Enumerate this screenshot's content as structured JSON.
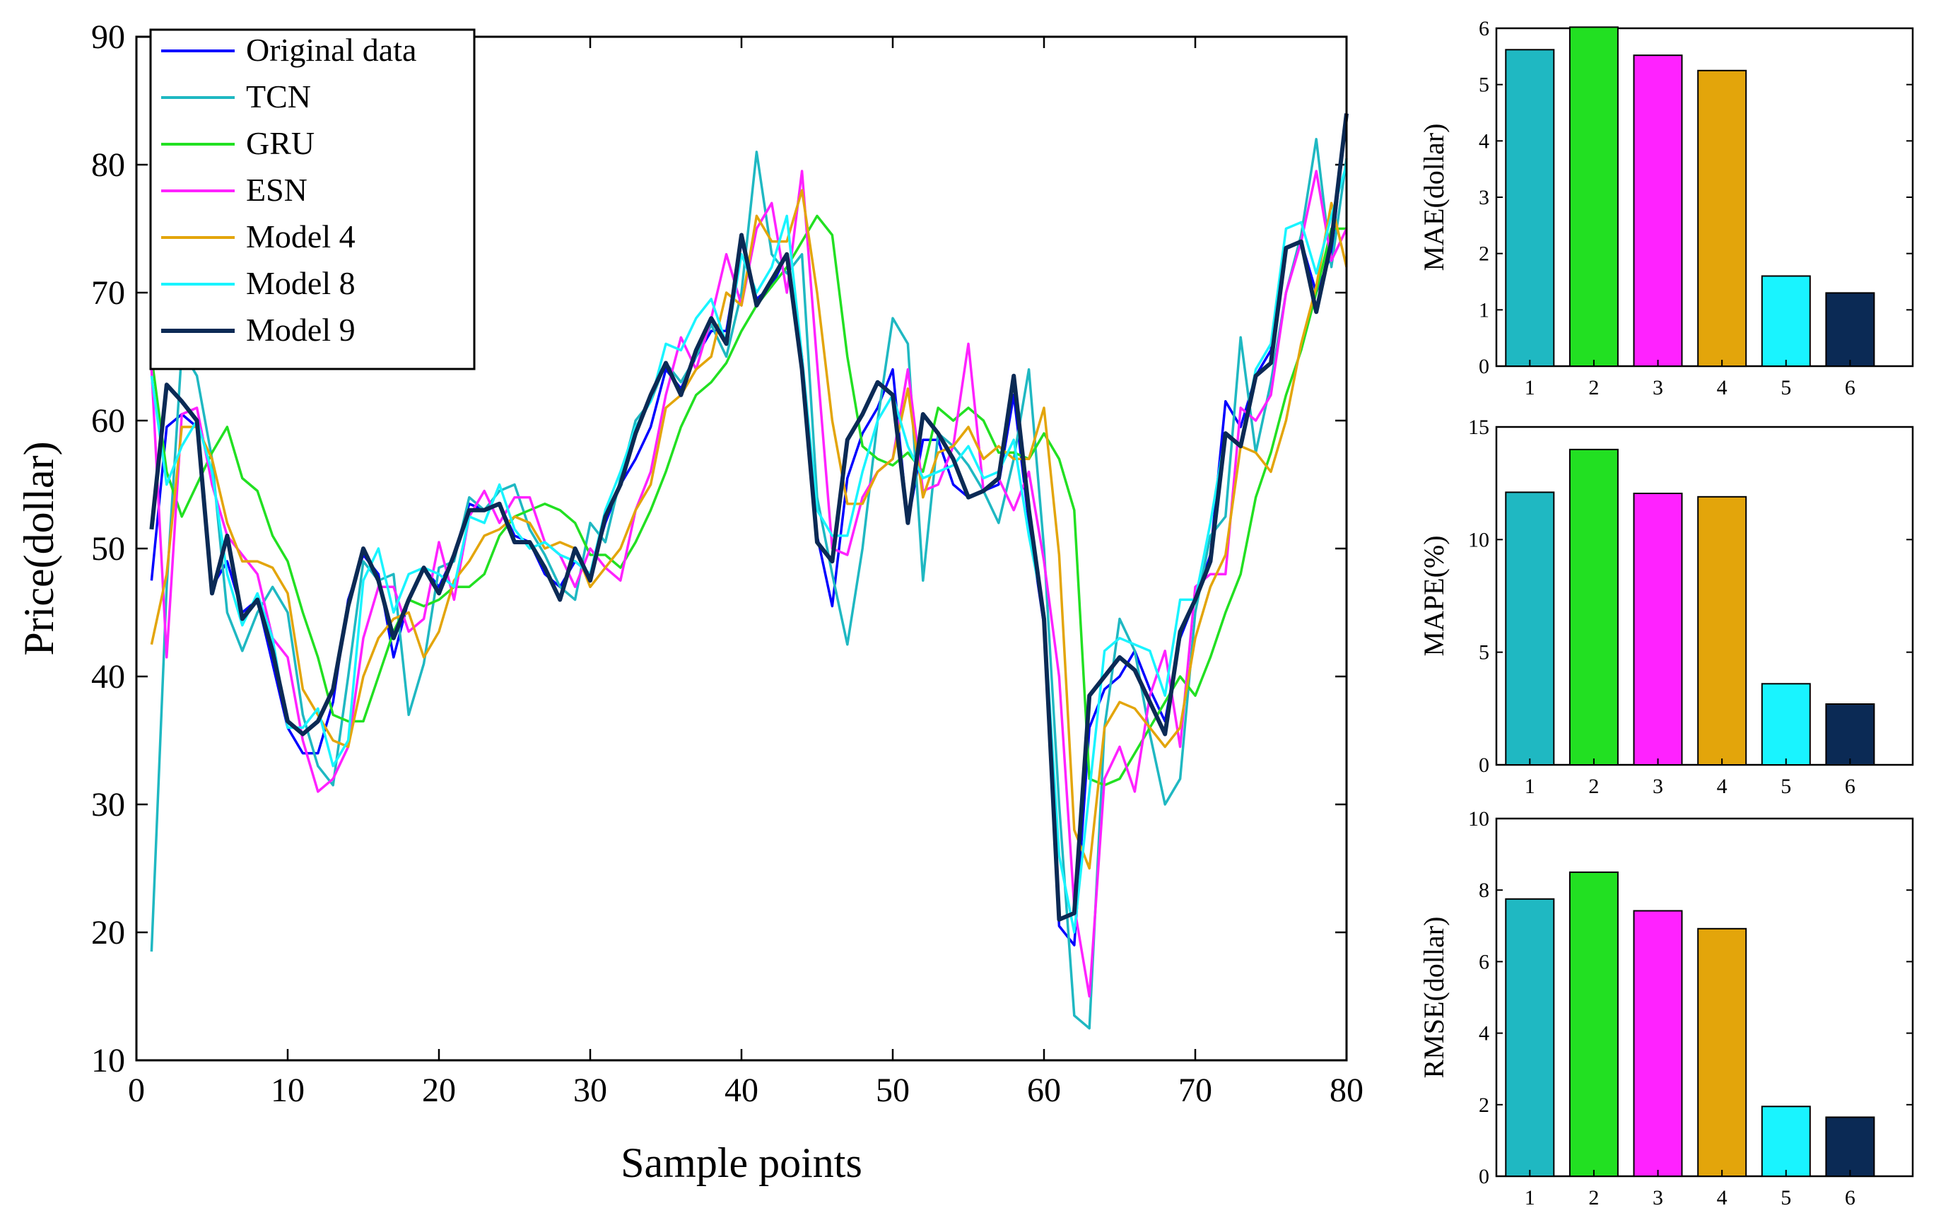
{
  "colors": {
    "original": "#0000ff",
    "tcn": "#1fb8c2",
    "gru": "#22e022",
    "esn": "#ff22ff",
    "model4": "#e3a50b",
    "model8": "#19f4ff",
    "model9": "#0b2a55"
  },
  "chart_data": [
    {
      "type": "line",
      "xlabel": "Sample points",
      "ylabel": "Price(dollar)",
      "xlim": [
        0,
        80
      ],
      "ylim": [
        10,
        90
      ],
      "xticks": [
        "0",
        "10",
        "20",
        "30",
        "40",
        "50",
        "60",
        "70",
        "80"
      ],
      "yticks": [
        "10",
        "20",
        "30",
        "40",
        "50",
        "60",
        "70",
        "80",
        "90"
      ],
      "legend": [
        "Original data",
        "TCN",
        "GRU",
        "ESN",
        "Model 4",
        "Model 8",
        "Model 9"
      ],
      "x": [
        1,
        2,
        3,
        4,
        5,
        6,
        7,
        8,
        9,
        10,
        11,
        12,
        13,
        14,
        15,
        16,
        17,
        18,
        19,
        20,
        21,
        22,
        23,
        24,
        25,
        26,
        27,
        28,
        29,
        30,
        31,
        32,
        33,
        34,
        35,
        36,
        37,
        38,
        39,
        40,
        41,
        42,
        43,
        44,
        45,
        46,
        47,
        48,
        49,
        50,
        51,
        52,
        53,
        54,
        55,
        56,
        57,
        58,
        59,
        60,
        61,
        62,
        63,
        64,
        65,
        66,
        67,
        68,
        69,
        70,
        71,
        72,
        73,
        74,
        75,
        76,
        77,
        78,
        79,
        80
      ],
      "series": [
        {
          "name": "Original data",
          "color_key": "original",
          "values": [
            47.5,
            59.5,
            60.5,
            59.5,
            47,
            49,
            45,
            46,
            41,
            36,
            34,
            34,
            38,
            46,
            49.5,
            48,
            41.5,
            46,
            48.5,
            47,
            49.5,
            53.5,
            53,
            53.5,
            51,
            50.5,
            48,
            47,
            49,
            48,
            52,
            55,
            57,
            59.5,
            64,
            62.5,
            65,
            67,
            67,
            74,
            69.5,
            70.5,
            73,
            65,
            51,
            45.5,
            55.5,
            59,
            61,
            64,
            52,
            58.5,
            58.5,
            55,
            54,
            54.5,
            55,
            62,
            52,
            44,
            20.5,
            19,
            36,
            39,
            40,
            42,
            39,
            36.5,
            43,
            46,
            49.5,
            61.5,
            59.5,
            63.5,
            65.5,
            73.5,
            74,
            70,
            73,
            84
          ]
        },
        {
          "name": "TCN",
          "color_key": "tcn",
          "values": [
            18.5,
            47,
            65.5,
            63.5,
            57,
            45,
            42,
            45,
            47,
            45,
            37,
            33,
            31.5,
            40,
            49,
            47.5,
            48,
            37,
            41,
            48.5,
            49,
            54,
            53,
            54.5,
            55,
            51.5,
            49.5,
            47,
            46,
            52,
            50.5,
            55.5,
            60,
            61.5,
            64.5,
            63,
            65,
            67.5,
            65,
            70,
            81,
            73,
            71.5,
            73,
            54,
            48,
            42.5,
            50,
            60,
            68,
            66,
            47.5,
            59,
            58,
            56.5,
            54.5,
            52,
            57,
            64,
            50,
            30,
            13.5,
            12.5,
            36,
            44.5,
            42,
            35.5,
            30,
            32,
            45,
            51,
            52.5,
            66.5,
            57.5,
            63,
            70,
            74.5,
            82,
            72,
            80.5
          ]
        },
        {
          "name": "GRU",
          "color_key": "gru",
          "values": [
            65,
            56,
            52.5,
            55,
            57.5,
            59.5,
            55.5,
            54.5,
            51,
            49,
            45,
            41.5,
            37,
            36.5,
            36.5,
            40,
            43.5,
            46,
            45.5,
            46,
            47,
            47,
            48,
            51,
            52.5,
            53,
            53.5,
            53,
            52,
            49.5,
            49.5,
            48.5,
            50.5,
            53,
            56,
            59.5,
            62,
            63,
            64.5,
            67,
            69,
            70.5,
            72,
            74,
            76,
            74.5,
            65,
            58,
            57,
            56.5,
            57.5,
            56,
            61,
            60,
            61,
            60,
            57.5,
            57.5,
            57,
            59,
            57,
            53,
            32,
            31.5,
            32,
            34,
            36,
            38,
            40,
            38.5,
            41.5,
            45,
            48,
            54,
            57.5,
            62,
            65.5,
            70,
            75,
            75
          ]
        },
        {
          "name": "ESN",
          "color_key": "esn",
          "values": [
            64,
            41.5,
            60.5,
            61,
            55,
            51,
            49.5,
            48,
            43,
            41.5,
            35,
            31,
            32,
            34.5,
            43,
            47,
            47,
            43.5,
            44.5,
            50.5,
            46,
            52.5,
            54.5,
            52,
            54,
            54,
            50.5,
            49.5,
            47,
            50,
            48.5,
            47.5,
            53,
            56,
            62,
            66.5,
            64,
            68,
            73,
            69,
            75,
            77,
            70,
            79.5,
            64.5,
            50,
            49.5,
            54,
            56,
            57,
            64,
            54.5,
            55,
            58,
            66,
            54.5,
            55.5,
            53,
            56,
            49,
            40,
            22,
            15,
            32,
            34.5,
            31,
            38.5,
            42,
            34.5,
            47,
            48,
            48,
            61,
            60,
            62,
            70,
            74,
            79.5,
            72.5,
            75
          ]
        },
        {
          "name": "Model 4",
          "color_key": "model4",
          "values": [
            42.5,
            48,
            59.5,
            59.5,
            57,
            52,
            49,
            49,
            48.5,
            46.5,
            39,
            37,
            35,
            34.5,
            40,
            43,
            44.5,
            45,
            41.5,
            43.5,
            47.5,
            49,
            51,
            51.5,
            52.5,
            52,
            50,
            50.5,
            50,
            47,
            48.5,
            50,
            53,
            55,
            61,
            62,
            64,
            65,
            70,
            69,
            76,
            74,
            74,
            78,
            70,
            60,
            53.5,
            53.5,
            56,
            57,
            62.5,
            54,
            57.5,
            58,
            59.5,
            57,
            58,
            57,
            57,
            61,
            49.5,
            28,
            25,
            36,
            38,
            37.5,
            36,
            34.5,
            36,
            43,
            47,
            49.5,
            58,
            57.5,
            56,
            60,
            66,
            70.5,
            77,
            72
          ]
        },
        {
          "name": "Model 8",
          "color_key": "model8",
          "values": [
            63.5,
            55,
            58,
            60,
            56,
            48,
            44,
            46.5,
            43,
            36,
            36,
            37.5,
            33,
            35,
            47.5,
            50,
            45,
            48,
            48.5,
            48,
            47,
            52.5,
            52,
            55,
            51.5,
            50,
            50.5,
            49.5,
            49,
            48,
            53,
            56,
            59.5,
            61.5,
            66,
            65.5,
            68,
            69.5,
            66,
            73,
            70,
            72,
            76,
            65,
            53,
            51,
            51,
            56,
            60,
            62,
            58,
            55.5,
            56,
            56.5,
            58,
            55.5,
            56,
            58.5,
            51,
            45,
            26,
            20,
            31,
            42,
            43,
            42.5,
            42,
            38.5,
            46,
            46,
            52,
            59,
            58,
            64,
            66,
            75,
            75.5,
            71.5,
            76,
            80
          ]
        },
        {
          "name": "Model 9",
          "color_key": "model9",
          "values": [
            51.5,
            62.8,
            61.5,
            60,
            46.5,
            51,
            44.5,
            46,
            42,
            36.5,
            35.5,
            36.5,
            39,
            45.5,
            50,
            47.5,
            43,
            46,
            48.5,
            46.5,
            49.5,
            53,
            53,
            53.5,
            50.5,
            50.5,
            48.5,
            46,
            50,
            47.5,
            52.5,
            55,
            59,
            62,
            64.5,
            62,
            65.5,
            68,
            66,
            74.5,
            69,
            71,
            73,
            64,
            50.5,
            49,
            58.5,
            60.5,
            63,
            62,
            52,
            60.5,
            59,
            57,
            54,
            54.5,
            55.5,
            63.5,
            53,
            44.5,
            21,
            21.5,
            38.5,
            40,
            41.5,
            40.5,
            38,
            35.5,
            43.5,
            46,
            49,
            59,
            58,
            63.5,
            64.5,
            73.5,
            74,
            68.5,
            74,
            84
          ]
        }
      ]
    },
    {
      "type": "bar",
      "ylabel": "MAE(dollar)",
      "ylim": [
        0,
        6
      ],
      "yticks": [
        "0",
        "1",
        "2",
        "3",
        "4",
        "5",
        "6"
      ],
      "categories": [
        "1",
        "2",
        "3",
        "4",
        "5",
        "6"
      ],
      "values": [
        5.62,
        6.02,
        5.52,
        5.25,
        1.6,
        1.3
      ]
    },
    {
      "type": "bar",
      "ylabel": "MAPE(%)",
      "ylim": [
        0,
        15
      ],
      "yticks": [
        "0",
        "5",
        "10",
        "15"
      ],
      "categories": [
        "1",
        "2",
        "3",
        "4",
        "5",
        "6"
      ],
      "values": [
        12.1,
        14.0,
        12.05,
        11.9,
        3.6,
        2.7
      ]
    },
    {
      "type": "bar",
      "ylabel": "RMSE(dollar)",
      "ylim": [
        0,
        10
      ],
      "yticks": [
        "0",
        "2",
        "4",
        "6",
        "8",
        "10"
      ],
      "categories": [
        "1",
        "2",
        "3",
        "4",
        "5",
        "6"
      ],
      "values": [
        7.75,
        8.5,
        7.42,
        6.92,
        1.95,
        1.65
      ]
    }
  ]
}
